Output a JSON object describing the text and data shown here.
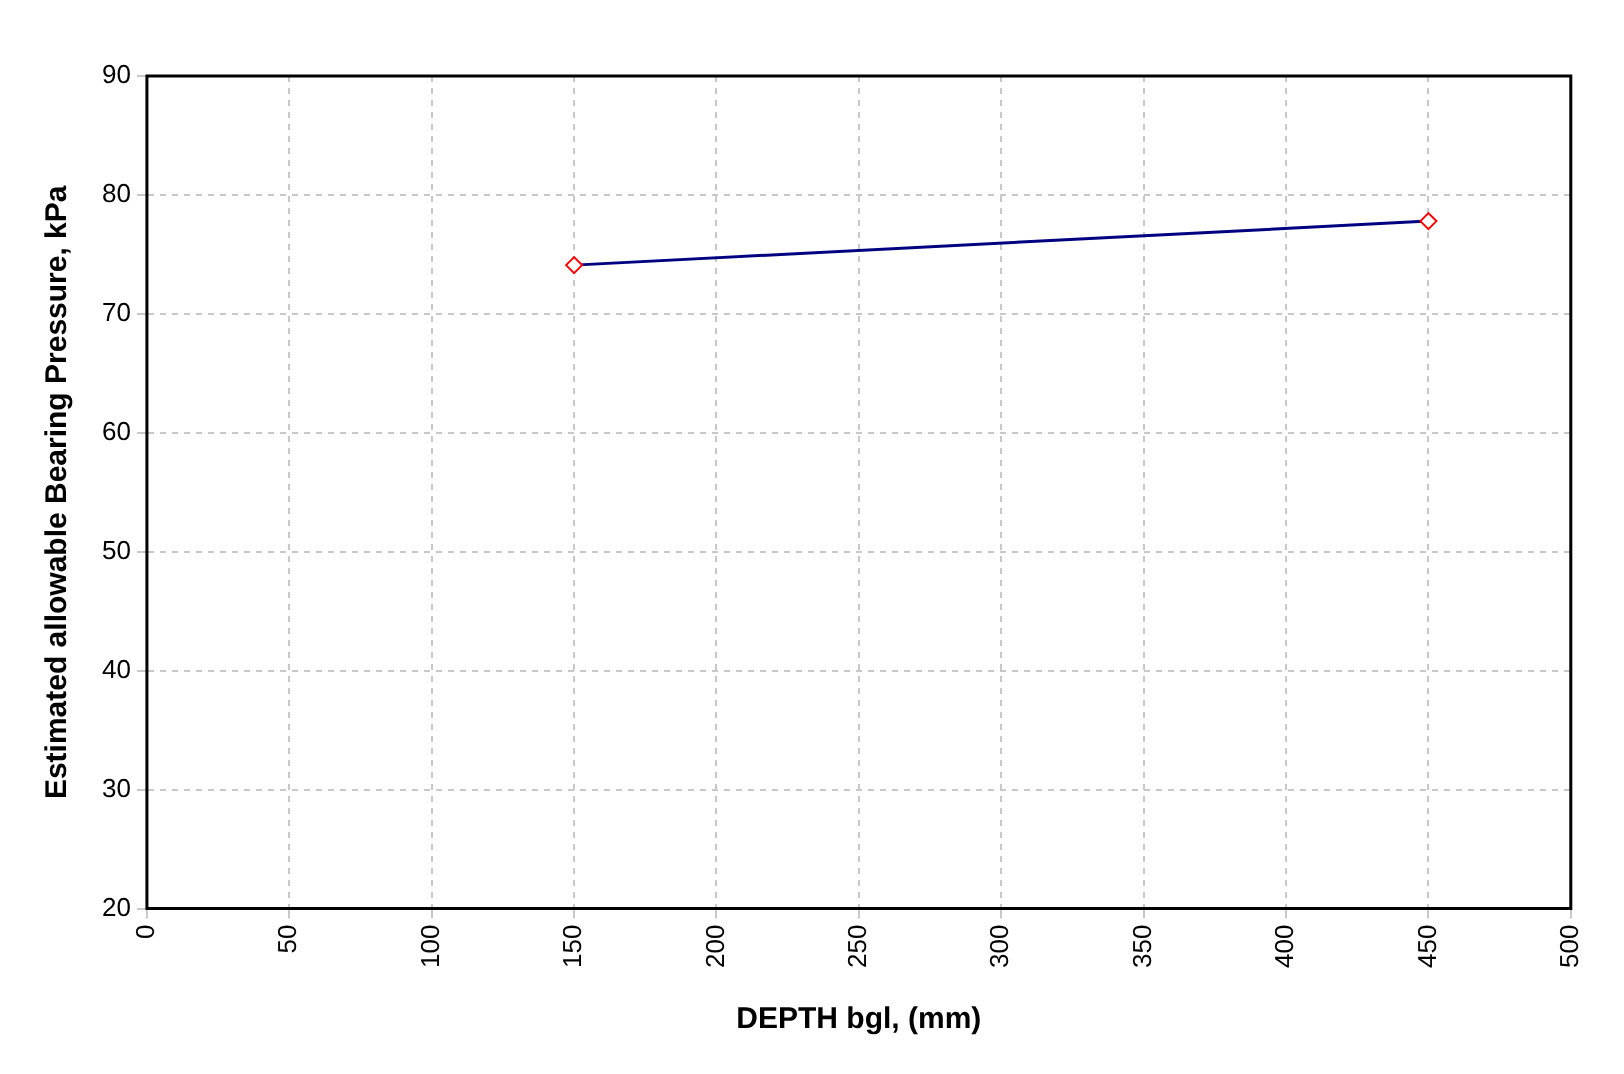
{
  "chart_data": {
    "type": "line",
    "xlabel": "DEPTH bgl, (mm)",
    "ylabel": "Estimated allowable Bearing Pressure, kPa",
    "x": [
      150,
      450
    ],
    "series": [
      {
        "color": "#000080",
        "colors": [
          "#ff0000",
          "#ff0000"
        ],
        "values": [
          74.1,
          77.8
        ]
      }
    ],
    "xlim": [
      0,
      500
    ],
    "xticks": [
      0,
      50,
      100,
      150,
      200,
      250,
      300,
      350,
      400,
      450,
      500
    ],
    "ylim": [
      20,
      90
    ],
    "yticks": [
      20,
      30,
      40,
      50,
      60,
      70,
      80,
      90
    ],
    "grid": true,
    "legend": false,
    "marker": "diamond",
    "line_style": "solid"
  }
}
